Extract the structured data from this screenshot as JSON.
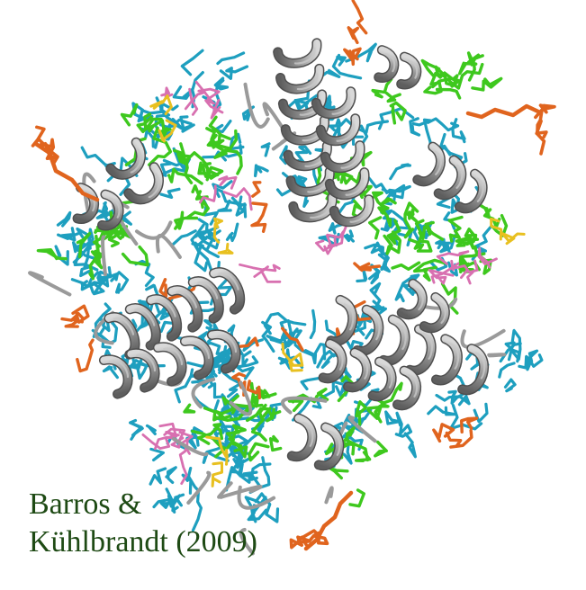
{
  "caption": {
    "line1": "Barros &",
    "line2": "Kühlbrandt (2009)"
  },
  "colors": {
    "helix": "#8c8c8c",
    "helix_highlight": "#c8c8c8",
    "lipid_cyan": "#1e9fbf",
    "chlorophyll_green": "#3ec81e",
    "carotenoid_orange": "#e0641e",
    "lipid_pink": "#d870b0",
    "yellow": "#e8c020",
    "caption": "#1e4a14",
    "background": "#ffffff"
  }
}
